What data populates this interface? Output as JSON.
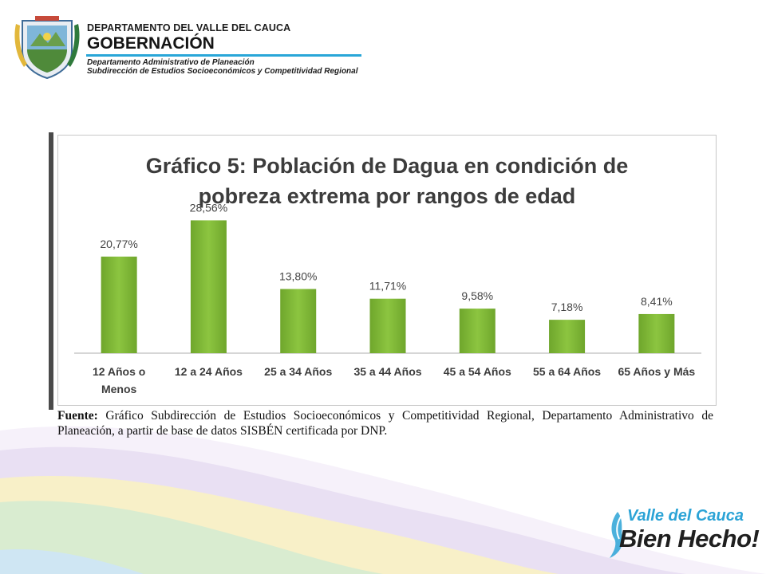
{
  "header": {
    "department": "DEPARTAMENTO DEL VALLE DEL CAUCA",
    "government": "GOBERNACIÓN",
    "administrative_dept": "Departamento  Administrativo de Planeación",
    "subdirection": "Subdirección de Estudios Socioeconómicos y Competitividad Regional"
  },
  "chart_data": {
    "type": "bar",
    "title": [
      "Gráfico 5: Población de Dagua en condición de",
      "pobreza extrema por rangos de edad"
    ],
    "categories": [
      [
        "12 Años o",
        "Menos"
      ],
      [
        "12 a 24 Años"
      ],
      [
        "25 a 34 Años"
      ],
      [
        "35 a 44 Años"
      ],
      [
        "45 a 54 Años"
      ],
      [
        "55 a 64 Años"
      ],
      [
        "65 Años y Más"
      ]
    ],
    "values": [
      20.77,
      28.56,
      13.8,
      11.71,
      9.58,
      7.18,
      8.41
    ],
    "value_labels": [
      "20,77%",
      "28,56%",
      "13,80%",
      "11,71%",
      "9,58%",
      "7,18%",
      "8,41%"
    ],
    "ylim": [
      0,
      30
    ],
    "bar_color": "#8cc540",
    "grid": false,
    "legend": "none"
  },
  "source": {
    "label": "Fuente:",
    "text": "Gráfico Subdirección de Estudios Socioeconómicos y Competitividad Regional, Departamento Administrativo de Planeación, a partir de base de datos SISBÉN certificada por DNP."
  },
  "brand": {
    "top": "Valle del Cauca",
    "bottom": "Bien Hecho!"
  },
  "colors": {
    "accent_blue": "#29a6d8",
    "bar_green": "#8cc540",
    "swoosh_purple": "#b9a6d6",
    "swoosh_yellow": "#f3e06b"
  }
}
